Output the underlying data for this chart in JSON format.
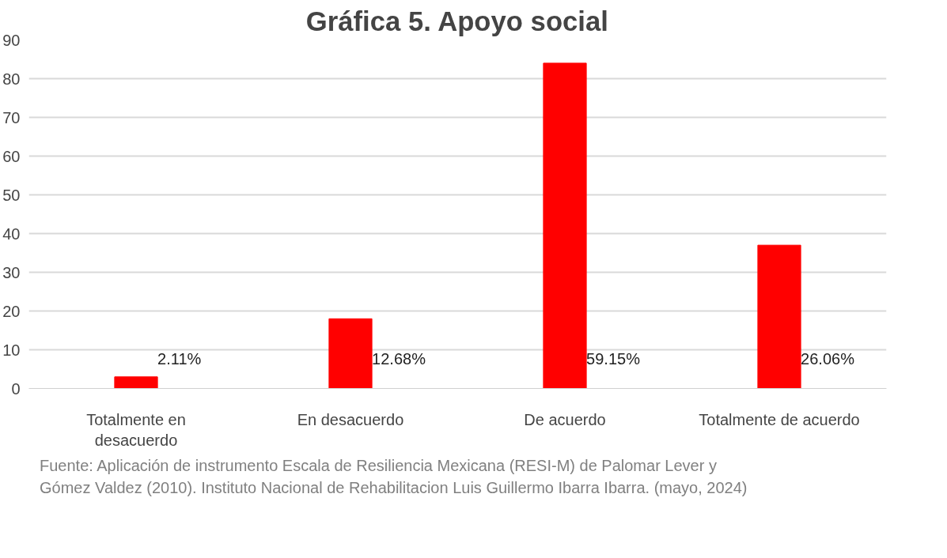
{
  "chart_data": {
    "type": "bar",
    "title": "Gráfica 5. Apoyo social",
    "categories": [
      "Totalmente en desacuerdo",
      "En desacuerdo",
      "De acuerdo",
      "Totalmente de acuerdo"
    ],
    "values": [
      3,
      18,
      84,
      37
    ],
    "color": "#ff0000",
    "ylim": [
      0,
      90
    ],
    "yticks": [
      0,
      10,
      20,
      30,
      40,
      50,
      60,
      70,
      80,
      90
    ],
    "grid": "y",
    "annotations": [
      "2.11%",
      "12.68%",
      "59.15%",
      "26.06%",
      "Fuente: Aplicación de instrumento Escala de Resiliencia Mexicana (RESI-M) de Palomar Lever y Gómez Valdez (2010). Instituto Nacional de Rehabilitacion Luis Guillermo Ibarra Ibarra. (mayo, 2024)"
    ]
  }
}
